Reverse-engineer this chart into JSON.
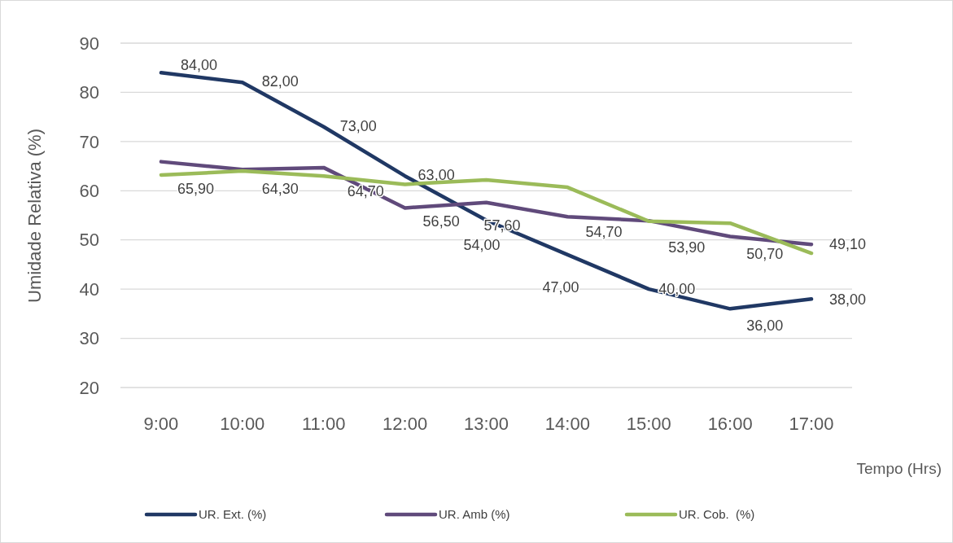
{
  "chart_data": {
    "type": "line",
    "ylabel": "Umidade Relativa (%)",
    "xlabel": "Tempo (Hrs)",
    "categories": [
      "9:00",
      "10:00",
      "11:00",
      "12:00",
      "13:00",
      "14:00",
      "15:00",
      "16:00",
      "17:00"
    ],
    "series": [
      {
        "name": "UR. Ext. (%)",
        "color": "#203864",
        "values": [
          84,
          82,
          73,
          63,
          54,
          47,
          40,
          36,
          38
        ],
        "value_labels": [
          "84,00",
          "82,00",
          "73,00",
          "63,00",
          "54,00",
          "47,00",
          "40,00",
          "36,00",
          "38,00"
        ]
      },
      {
        "name": "UR. Amb (%)",
        "color": "#604a7b",
        "values": [
          65.9,
          64.3,
          64.7,
          56.5,
          57.6,
          54.7,
          53.9,
          50.7,
          49.1
        ],
        "value_labels": [
          "65,90",
          "64,30",
          "64,70",
          "56,50",
          "57,60",
          "54,70",
          "53,90",
          "50,70",
          "49,10"
        ]
      },
      {
        "name": "UR. Cob.  (%)",
        "color": "#9bbb59",
        "values": [
          63.2,
          64,
          63,
          61.3,
          62.2,
          60.7,
          53.8,
          53.4,
          47.3
        ]
      }
    ],
    "ylim": [
      20,
      90
    ],
    "yticks": [
      20,
      30,
      40,
      50,
      60,
      70,
      80,
      90
    ],
    "grid": "y",
    "legend": "bottom",
    "marker": "none",
    "line_style": "solid"
  }
}
